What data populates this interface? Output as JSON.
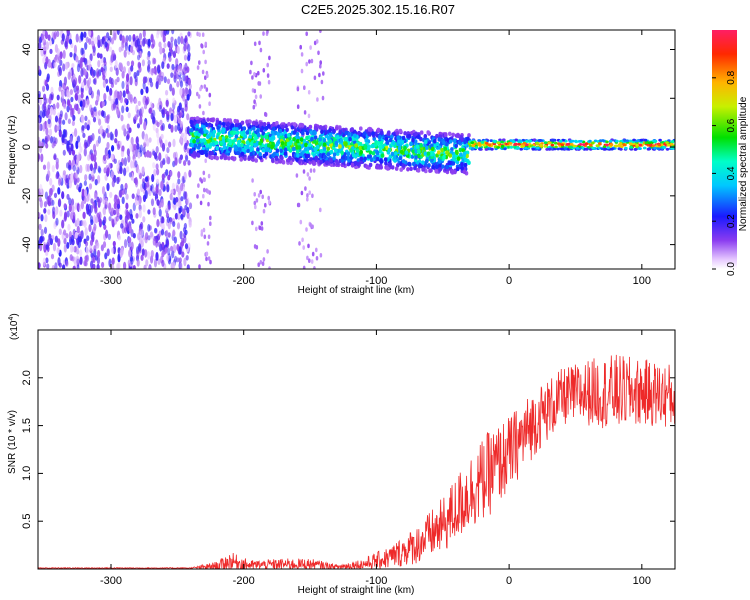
{
  "title": "C2E5.2025.302.15.16.R07",
  "colors": {
    "spectrogram_noise": "#6a1fd8",
    "spectrogram_low": "#8b55f0",
    "snr_line": "#ee2a2a",
    "axis": "#000000"
  },
  "chart_data": [
    {
      "type": "heatmap",
      "name": "spectrogram",
      "xlabel": "Height of straight line (km)",
      "ylabel": "Frequency (Hz)",
      "xlim": [
        -355,
        125
      ],
      "ylim": [
        -50,
        48
      ],
      "x_ticks": [
        -300,
        -200,
        -100,
        0,
        100
      ],
      "y_ticks": [
        -40,
        -20,
        0,
        20,
        40
      ],
      "colorbar": {
        "label": "Normalized spectral amplitude",
        "range": [
          0,
          1
        ],
        "ticks": [
          "0.0",
          "0.2",
          "0.4",
          "0.6",
          "0.8"
        ],
        "tick_values": [
          0,
          0.2,
          0.4,
          0.6,
          0.8
        ]
      },
      "features": [
        {
          "description": "broadband noise",
          "x_range": [
            -355,
            -240
          ],
          "freq_range": [
            -50,
            48
          ],
          "amplitude": 0.15
        },
        {
          "description": "signal band",
          "x_range": [
            -240,
            -30
          ],
          "center_freq_start": 4,
          "center_freq_end": -3,
          "half_width": 8,
          "amplitude": 0.45
        },
        {
          "description": "narrow tone",
          "x_range": [
            -30,
            125
          ],
          "center_freq": 1,
          "half_width": 2,
          "amplitude": 0.95
        }
      ]
    },
    {
      "type": "line",
      "name": "snr",
      "xlabel": "Height of straight line (km)",
      "ylabel": "SNR (10 * v/v)",
      "y_multiplier_label": "(x10",
      "y_multiplier_exp": "4",
      "y_multiplier_close": ")",
      "xlim": [
        -355,
        125
      ],
      "ylim": [
        0,
        2.5
      ],
      "x_ticks": [
        -300,
        -200,
        -100,
        0,
        100
      ],
      "y_ticks": [
        0.5,
        1.0,
        1.5,
        2.0
      ],
      "y_tick_labels": [
        "0.5",
        "1.0",
        "1.5",
        "2.0"
      ],
      "envelope_x": [
        -355,
        -240,
        -220,
        -210,
        -195,
        -170,
        -150,
        -130,
        -110,
        -90,
        -70,
        -50,
        -30,
        -15,
        0,
        20,
        40,
        60,
        80,
        100,
        125
      ],
      "envelope_mean": [
        0.01,
        0.01,
        0.03,
        0.08,
        0.04,
        0.05,
        0.05,
        0.02,
        0.05,
        0.12,
        0.25,
        0.45,
        0.8,
        1.0,
        1.2,
        1.55,
        1.8,
        1.85,
        1.85,
        1.85,
        1.8
      ],
      "envelope_spread": [
        0.005,
        0.005,
        0.05,
        0.1,
        0.05,
        0.06,
        0.06,
        0.03,
        0.06,
        0.12,
        0.2,
        0.3,
        0.4,
        0.45,
        0.4,
        0.35,
        0.3,
        0.35,
        0.4,
        0.35,
        0.35
      ]
    }
  ]
}
